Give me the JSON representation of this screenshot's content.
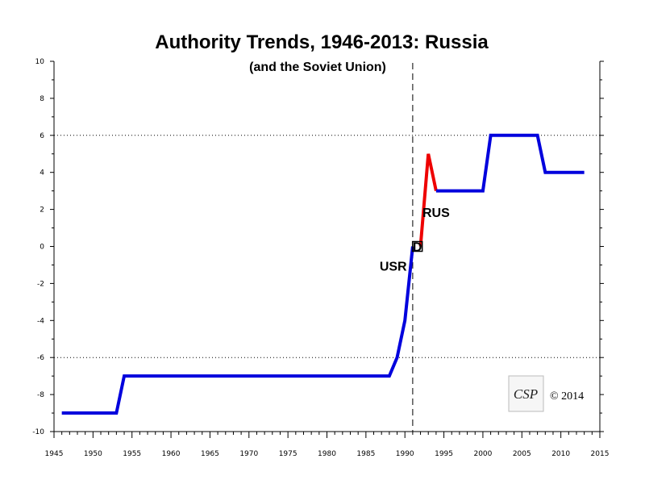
{
  "chart_data": {
    "type": "line",
    "title": "Authority Trends, 1946-2013: Russia",
    "subtitle": "(and the Soviet Union)",
    "xlabel": "",
    "ylabel": "",
    "xlim": [
      1945,
      2015
    ],
    "ylim": [
      -10,
      10
    ],
    "x_ticks": [
      1945,
      1950,
      1955,
      1960,
      1965,
      1970,
      1975,
      1980,
      1985,
      1990,
      1995,
      2000,
      2005,
      2010,
      2015
    ],
    "y_ticks": [
      -10,
      -8,
      -6,
      -4,
      -2,
      0,
      2,
      4,
      6,
      8,
      10
    ],
    "reference_lines": [
      {
        "axis": "y",
        "value": 6,
        "style": "dotted"
      },
      {
        "axis": "y",
        "value": -6,
        "style": "dotted"
      },
      {
        "axis": "x",
        "value": 1991,
        "style": "dashed"
      }
    ],
    "series": [
      {
        "name": "USR",
        "color": "#0000dd",
        "x": [
          1946,
          1953,
          1954,
          1988,
          1989,
          1990,
          1991
        ],
        "y": [
          -9,
          -9,
          -7,
          -7,
          -6,
          -4,
          0
        ]
      },
      {
        "name": "",
        "color": "#ee0000",
        "x": [
          1992,
          1993,
          1994
        ],
        "y": [
          0,
          5,
          3
        ]
      },
      {
        "name": "RUS",
        "color": "#0000dd",
        "x": [
          1994,
          2000,
          2001,
          2007,
          2008,
          2013
        ],
        "y": [
          3,
          3,
          6,
          6,
          4,
          4
        ]
      }
    ],
    "annotations": [
      {
        "text": "USR",
        "x": 1988.5,
        "y": -1.3
      },
      {
        "text": "RUS",
        "x": 1994,
        "y": 1.6
      },
      {
        "text": "D",
        "marker": "square",
        "x": 1991.6,
        "y": 0
      }
    ],
    "copyright": "© 2014",
    "logo_text": "CSP"
  }
}
